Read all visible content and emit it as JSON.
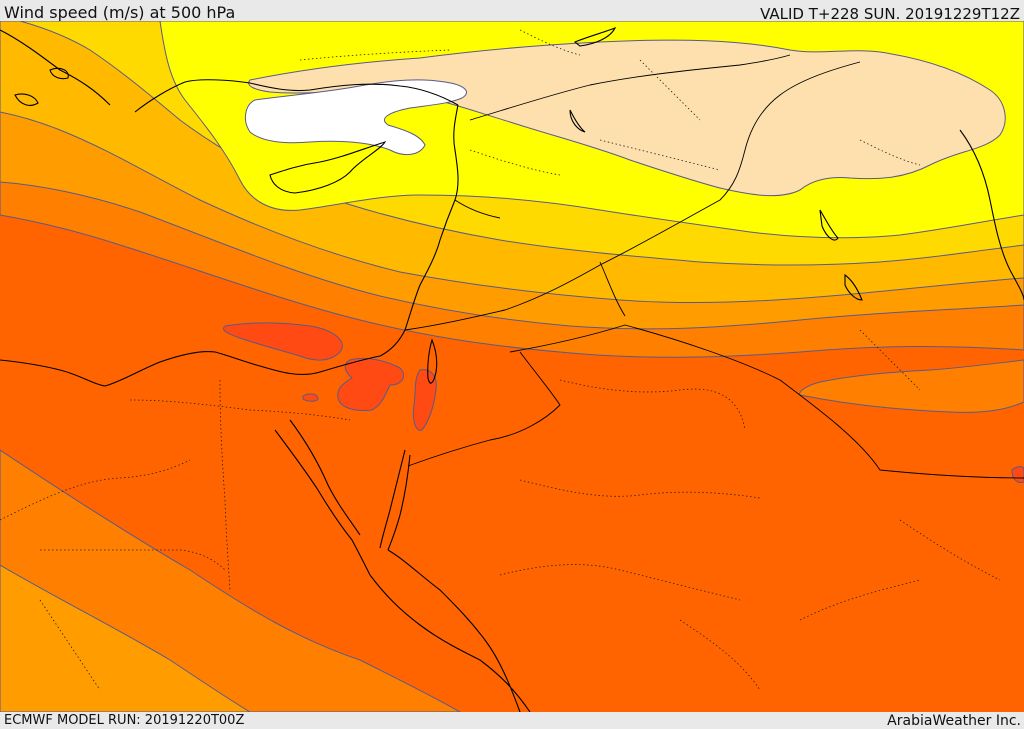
{
  "header": {
    "title": "Wind speed (m/s) at 500 hPa",
    "valid": "VALID T+228 SUN. 20191229T12Z"
  },
  "footer": {
    "run": "ECMWF MODEL RUN: 20191220T00Z",
    "credit": "ArabiaWeather Inc."
  },
  "map": {
    "variable": "wind speed",
    "units": "m/s",
    "level_hpa": 500,
    "colors": {
      "white": "#ffffff",
      "pale": "#fde0ad",
      "yellow": "#ffff00",
      "gold": "#ffda00",
      "amber": "#ffba00",
      "light_orange": "#ff9d00",
      "orange": "#ff8000",
      "dark_orange": "#ff6400",
      "red_orange": "#ff4a13",
      "land_outline": "#000000",
      "contour": "#5a5a8a"
    }
  }
}
